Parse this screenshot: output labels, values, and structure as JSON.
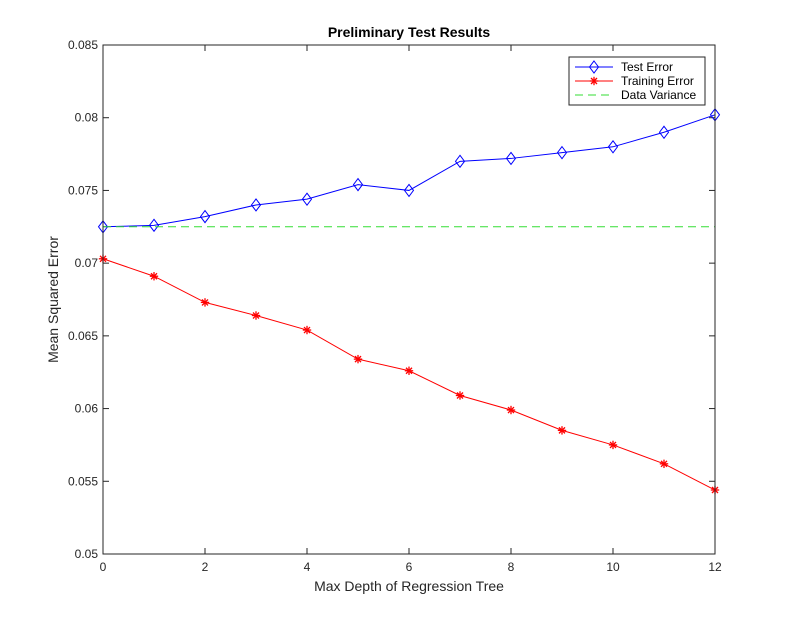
{
  "chart_data": {
    "type": "line",
    "title": "Preliminary Test Results",
    "xlabel": "Max Depth of Regression Tree",
    "ylabel": "Mean Squared Error",
    "xlim": [
      0,
      12
    ],
    "ylim": [
      0.05,
      0.085
    ],
    "x_ticks": [
      0,
      2,
      4,
      6,
      8,
      10,
      12
    ],
    "x_tick_labels": [
      "0",
      "2",
      "4",
      "6",
      "8",
      "10",
      "12"
    ],
    "y_ticks": [
      0.05,
      0.055,
      0.06,
      0.065,
      0.07,
      0.075,
      0.08,
      0.085
    ],
    "y_tick_labels": [
      "0.05",
      "0.055",
      "0.06",
      "0.065",
      "0.07",
      "0.075",
      "0.08",
      "0.085"
    ],
    "grid": false,
    "legend_position": "top-right",
    "x": [
      0,
      1,
      2,
      3,
      4,
      5,
      6,
      7,
      8,
      9,
      10,
      11,
      12
    ],
    "series": [
      {
        "name": "Test Error",
        "color": "#0000ff",
        "marker": "diamond",
        "line_style": "solid",
        "values": [
          0.0725,
          0.0726,
          0.0732,
          0.074,
          0.0744,
          0.0754,
          0.075,
          0.077,
          0.0772,
          0.0776,
          0.078,
          0.079,
          0.0802
        ]
      },
      {
        "name": "Training Error",
        "color": "#ff0000",
        "marker": "asterisk",
        "line_style": "solid",
        "values": [
          0.0703,
          0.0691,
          0.0673,
          0.0664,
          0.0654,
          0.0634,
          0.0626,
          0.0609,
          0.0599,
          0.0585,
          0.0575,
          0.0562,
          0.0544
        ]
      },
      {
        "name": "Data Variance",
        "color": "#33dd33",
        "marker": "none",
        "line_style": "dashed",
        "values": [
          0.0725,
          0.0725,
          0.0725,
          0.0725,
          0.0725,
          0.0725,
          0.0725,
          0.0725,
          0.0725,
          0.0725,
          0.0725,
          0.0725,
          0.0725
        ]
      }
    ]
  }
}
